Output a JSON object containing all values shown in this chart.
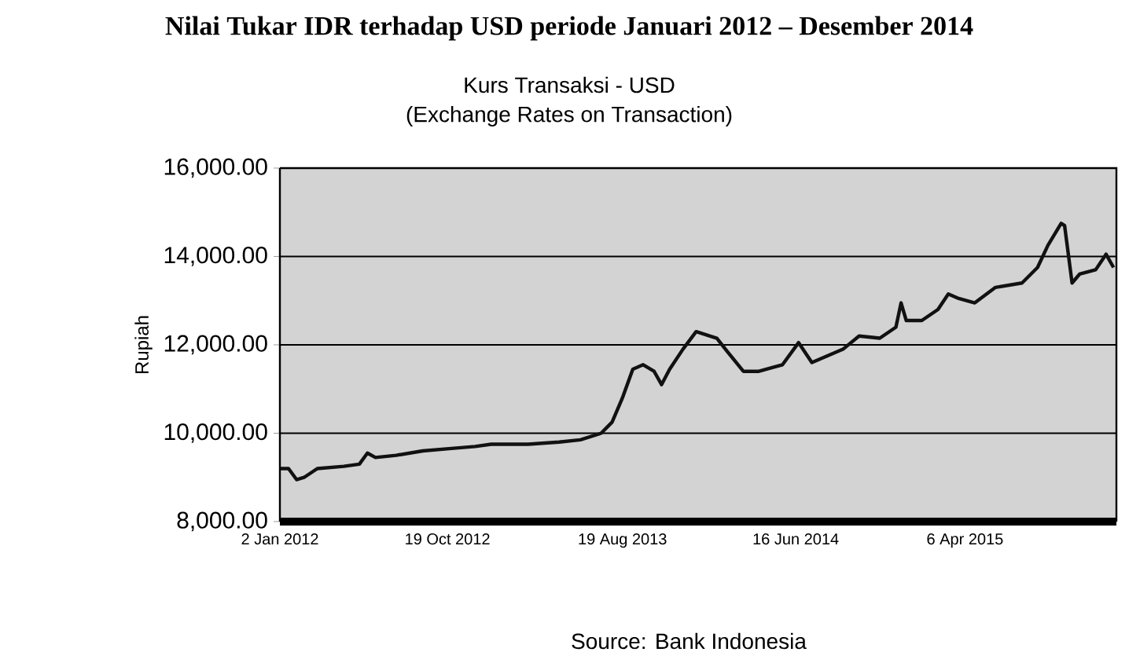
{
  "chart_data": {
    "type": "line",
    "title": "Nilai Tukar IDR terhadap USD periode Januari 2012 – Desember 2014",
    "subtitle": "Kurs Transaksi - USD",
    "ylabel": "Rupiah",
    "annotations": [
      "(Exchange Rates on Transaction)",
      "Source: Bank Indonesia"
    ],
    "x": [
      "2012-01-03",
      "2012-01-17",
      "2012-01-31",
      "2012-02-13",
      "2012-03-07",
      "2012-04-22",
      "2012-05-19",
      "2012-06-02",
      "2012-06-16",
      "2012-07-22",
      "2012-09-06",
      "2012-10-22",
      "2012-12-06",
      "2013-01-03",
      "2013-03-08",
      "2013-05-01",
      "2013-06-07",
      "2013-07-13",
      "2013-08-01",
      "2013-08-19",
      "2013-09-06",
      "2013-09-24",
      "2013-10-13",
      "2013-10-26",
      "2013-11-09",
      "2013-12-02",
      "2013-12-25",
      "2014-01-30",
      "2014-02-17",
      "2014-03-17",
      "2014-04-13",
      "2014-05-10",
      "2014-05-24",
      "2014-06-21",
      "2014-07-14",
      "2014-08-10",
      "2014-09-06",
      "2014-10-04",
      "2014-11-09",
      "2014-12-07",
      "2014-12-16",
      "2014-12-25",
      "2015-01-21",
      "2015-02-18",
      "2015-03-08",
      "2015-03-26",
      "2015-04-23",
      "2015-05-29",
      "2015-07-14",
      "2015-08-10",
      "2015-08-28",
      "2015-09-20",
      "2015-09-26",
      "2015-10-09",
      "2015-10-22",
      "2015-11-19",
      "2015-12-07",
      "2015-12-20"
    ],
    "series": [
      {
        "color": "#111111",
        "values": [
          9200,
          9200,
          8950,
          9000,
          9200,
          9250,
          9300,
          9550,
          9450,
          9500,
          9600,
          9650,
          9700,
          9750,
          9750,
          9800,
          9850,
          10000,
          10250,
          10800,
          11450,
          11550,
          11400,
          11100,
          11450,
          11900,
          12300,
          12150,
          11850,
          11400,
          11400,
          11500,
          11550,
          12050,
          11600,
          11750,
          11900,
          12200,
          12150,
          12400,
          12950,
          12550,
          12550,
          12800,
          13150,
          13050,
          12950,
          13300,
          13400,
          13750,
          14250,
          14750,
          14700,
          13400,
          13600,
          13700,
          14050,
          13750
        ]
      }
    ],
    "xlim": [
      "2012-01-02",
      "2015-12-25"
    ],
    "xticks": [
      {
        "value": "2012-01-02",
        "label": "2 Jan 2012"
      },
      {
        "value": "2012-10-19",
        "label": "19 Oct 2012"
      },
      {
        "value": "2013-08-19",
        "label": "19 Aug 2013"
      },
      {
        "value": "2014-06-16",
        "label": "16 Jun 2014"
      },
      {
        "value": "2015-04-06",
        "label": "6 Apr 2015"
      }
    ],
    "ylim": [
      8000,
      16000
    ],
    "yticks": [
      {
        "value": 8000,
        "label": "8,000.00"
      },
      {
        "value": 10000,
        "label": "10,000.00"
      },
      {
        "value": 12000,
        "label": "12,000.00"
      },
      {
        "value": 14000,
        "label": "14,000.00"
      },
      {
        "value": 16000,
        "label": "16,000.00"
      }
    ],
    "grid": "y",
    "marker": "none",
    "line_style": "solid"
  }
}
